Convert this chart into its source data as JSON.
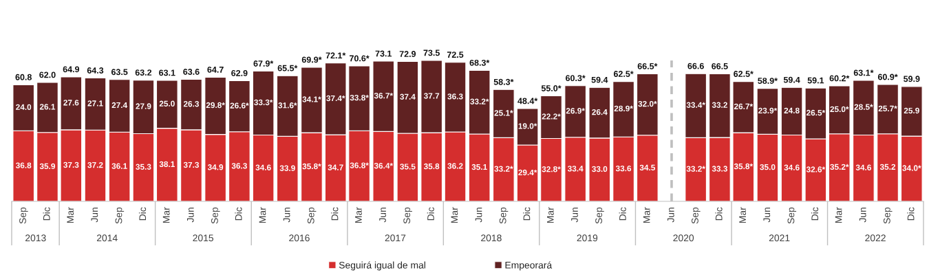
{
  "chart_data": {
    "type": "bar",
    "stacked": true,
    "tick_labels": "x",
    "legend": "bottom",
    "x": [
      "2013-09",
      "2013-12",
      "2014-03",
      "2014-06",
      "2014-09",
      "2014-12",
      "2015-03",
      "2015-06",
      "2015-09",
      "2015-12",
      "2016-03",
      "2016-06",
      "2016-09",
      "2016-12",
      "2017-03",
      "2017-06",
      "2017-09",
      "2017-12",
      "2018-03",
      "2018-06",
      "2018-09",
      "2018-12",
      "2019-03",
      "2019-06",
      "2019-09",
      "2019-12",
      "2020-03",
      "2020-06",
      "2020-09",
      "2020-12",
      "2021-03",
      "2021-06",
      "2021-09",
      "2021-12",
      "2022-03",
      "2022-06",
      "2022-09",
      "2022-12"
    ],
    "series": [
      {
        "name": "Seguirá igual de mal",
        "color": "#d52e2e",
        "values": [
          36.8,
          35.9,
          37.3,
          37.2,
          36.1,
          35.3,
          38.1,
          37.3,
          34.9,
          36.3,
          34.6,
          33.9,
          35.8,
          34.7,
          36.8,
          36.4,
          35.5,
          35.8,
          36.2,
          35.1,
          33.2,
          29.4,
          32.8,
          33.4,
          33.0,
          33.6,
          34.5,
          null,
          33.2,
          33.3,
          35.8,
          35.0,
          34.6,
          32.6,
          35.2,
          34.6,
          35.2,
          34.0
        ],
        "value_labels": [
          "36.8",
          "35.9",
          "37.3",
          "37.2",
          "36.1",
          "35.3",
          "38.1",
          "37.3",
          "34.9",
          "36.3",
          "34.6",
          "33.9",
          "35.8*",
          "34.7",
          "36.8*",
          "36.4*",
          "35.5",
          "35.8",
          "36.2",
          "35.1",
          "33.2*",
          "29.4*",
          "32.8*",
          "33.4",
          "33.0",
          "33.6",
          "34.5",
          null,
          "33.2*",
          "33.3",
          "35.8*",
          "35.0",
          "34.6",
          "32.6*",
          "35.2*",
          "34.6",
          "35.2",
          "34.0*"
        ]
      },
      {
        "name": "Empeorará",
        "color": "#602222",
        "values": [
          24.0,
          26.1,
          27.6,
          27.1,
          27.4,
          27.9,
          25.0,
          26.3,
          29.8,
          26.6,
          33.3,
          31.6,
          34.1,
          37.4,
          33.8,
          36.7,
          37.4,
          37.7,
          36.3,
          33.2,
          25.1,
          19.0,
          22.2,
          26.9,
          26.4,
          28.9,
          32.0,
          null,
          33.4,
          33.2,
          26.7,
          23.9,
          24.8,
          26.5,
          25.0,
          28.5,
          25.7,
          25.9
        ],
        "value_labels": [
          "24.0",
          "26.1",
          "27.6",
          "27.1",
          "27.4",
          "27.9",
          "25.0",
          "26.3",
          "29.8*",
          "26.6*",
          "33.3*",
          "31.6*",
          "34.1*",
          "37.4*",
          "33.8*",
          "36.7*",
          "37.4",
          "37.7",
          "36.3",
          "33.2*",
          "25.1*",
          "19.0*",
          "22.2*",
          "26.9*",
          "26.4",
          "28.9*",
          "32.0*",
          null,
          "33.4*",
          "33.2",
          "26.7*",
          "23.9*",
          "24.8",
          "26.5*",
          "25.0*",
          "28.5*",
          "25.7*",
          "25.9"
        ]
      }
    ],
    "totals": [
      "60.8",
      "62.0",
      "64.9",
      "64.3",
      "63.5",
      "63.2",
      "63.1",
      "63.6",
      "64.7",
      "62.9",
      "67.9*",
      "65.5*",
      "69.9*",
      "72.1*",
      "70.6*",
      "73.1",
      "72.9",
      "73.5",
      "72.5",
      "68.3*",
      "58.3*",
      "48.4*",
      "55.0*",
      "60.3*",
      "59.4",
      "62.5*",
      "66.5*",
      null,
      "66.6",
      "66.5",
      "62.5*",
      "58.9*",
      "59.4",
      "59.1",
      "60.2*",
      "63.1*",
      "60.9*",
      "59.9"
    ],
    "xlim": [
      "2013-07-18",
      "2023-01-15"
    ],
    "xticks": [
      {
        "value": "2013-09",
        "label": "Sep"
      },
      {
        "value": "2013-12",
        "label": "Dic"
      },
      {
        "value": "2014-03",
        "label": "Mar"
      },
      {
        "value": "2014-06",
        "label": "Jun"
      },
      {
        "value": "2014-09",
        "label": "Sep"
      },
      {
        "value": "2014-12",
        "label": "Dic"
      },
      {
        "value": "2015-03",
        "label": "Mar"
      },
      {
        "value": "2015-06",
        "label": "Jun"
      },
      {
        "value": "2015-09",
        "label": "Sep"
      },
      {
        "value": "2015-12",
        "label": "Dic"
      },
      {
        "value": "2016-03",
        "label": "Mar"
      },
      {
        "value": "2016-06",
        "label": "Jun"
      },
      {
        "value": "2016-09",
        "label": "Sep"
      },
      {
        "value": "2016-12",
        "label": "Dic"
      },
      {
        "value": "2017-03",
        "label": "Mar"
      },
      {
        "value": "2017-06",
        "label": "Jun"
      },
      {
        "value": "2017-09",
        "label": "Sep"
      },
      {
        "value": "2017-12",
        "label": "Dic"
      },
      {
        "value": "2018-03",
        "label": "Mar"
      },
      {
        "value": "2018-06",
        "label": "Jun"
      },
      {
        "value": "2018-09",
        "label": "Sep"
      },
      {
        "value": "2018-12",
        "label": "Dic"
      },
      {
        "value": "2019-03",
        "label": "Mar"
      },
      {
        "value": "2019-06",
        "label": "Jun"
      },
      {
        "value": "2019-09",
        "label": "Sep"
      },
      {
        "value": "2019-12",
        "label": "Dic"
      },
      {
        "value": "2020-03",
        "label": "Mar"
      },
      {
        "value": "2020-06",
        "label": "Jun"
      },
      {
        "value": "2020-09",
        "label": "Sep"
      },
      {
        "value": "2020-12",
        "label": "Dic"
      },
      {
        "value": "2021-03",
        "label": "Mar"
      },
      {
        "value": "2021-06",
        "label": "Jun"
      },
      {
        "value": "2021-09",
        "label": "Sep"
      },
      {
        "value": "2021-12",
        "label": "Dic"
      },
      {
        "value": "2022-03",
        "label": "Mar"
      },
      {
        "value": "2022-06",
        "label": "Jun"
      },
      {
        "value": "2022-09",
        "label": "Sep"
      },
      {
        "value": "2022-12",
        "label": "Dic"
      }
    ],
    "x2lim": [
      "2013-07-18",
      "2023-01-15"
    ],
    "x2ticks": [
      {
        "value": "2013-10-17",
        "label": "2013"
      },
      {
        "value": "2014-07-16",
        "label": "2014"
      },
      {
        "value": "2015-07-16",
        "label": "2015"
      },
      {
        "value": "2016-07-16",
        "label": "2016"
      },
      {
        "value": "2017-07-16",
        "label": "2017"
      },
      {
        "value": "2018-07-16",
        "label": "2018"
      },
      {
        "value": "2019-07-16",
        "label": "2019"
      },
      {
        "value": "2020-07-16",
        "label": "2020"
      },
      {
        "value": "2021-07-16",
        "label": "2021"
      },
      {
        "value": "2022-07-16",
        "label": "2022"
      }
    ],
    "ref_lines": [
      {
        "axis": "x",
        "value": "2020-06",
        "line_style": "dashed",
        "color": "#bfbfbf"
      }
    ]
  }
}
